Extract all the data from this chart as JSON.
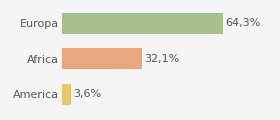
{
  "categories": [
    "America",
    "Africa",
    "Europa"
  ],
  "values": [
    3.6,
    32.1,
    64.3
  ],
  "bar_colors": [
    "#e8c96a",
    "#e8a87c",
    "#a8bf8c"
  ],
  "labels": [
    "3,6%",
    "32,1%",
    "64,3%"
  ],
  "xlim": [
    0,
    85
  ],
  "background_color": "#f5f5f5",
  "bar_height": 0.6,
  "label_fontsize": 8,
  "tick_fontsize": 8
}
